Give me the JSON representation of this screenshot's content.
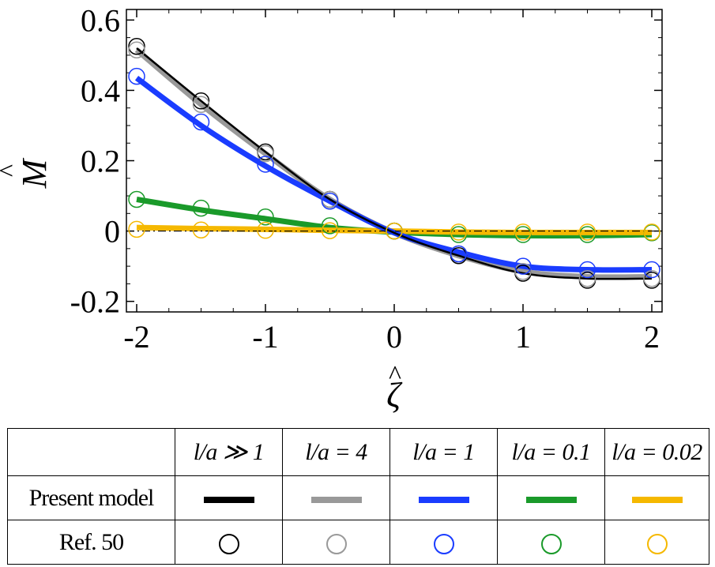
{
  "chart_data": {
    "type": "line",
    "title": "",
    "xlabel": "ζ",
    "ylabel": "M",
    "xlim": [
      -2,
      2
    ],
    "ylim": [
      -0.23,
      0.63
    ],
    "xticks": [
      -2,
      -1,
      0,
      1,
      2
    ],
    "xtick_labels": [
      "-2",
      "-1",
      "0",
      "1",
      "2"
    ],
    "yticks": [
      -0.2,
      0,
      0.2,
      0.4,
      0.6
    ],
    "ytick_labels": [
      "-0.2",
      "0",
      "0.2",
      "0.4",
      "0.6"
    ],
    "x": [
      -2,
      -1.5,
      -1,
      -0.5,
      0,
      0.5,
      1,
      1.5,
      2
    ],
    "series": [
      {
        "name": "l/a ≫ 1",
        "color": "#000000",
        "lineWidth": 2.5,
        "line": [
          0.52,
          0.37,
          0.225,
          0.09,
          -0.005,
          -0.07,
          -0.12,
          -0.135,
          -0.135
        ],
        "markers": [
          0.525,
          0.37,
          0.225,
          0.09,
          0.0,
          -0.07,
          -0.12,
          -0.14,
          -0.14
        ]
      },
      {
        "name": "l/a = 4",
        "color": "#999999",
        "lineWidth": 7,
        "line": [
          0.515,
          0.36,
          0.22,
          0.09,
          -0.005,
          -0.07,
          -0.115,
          -0.13,
          -0.13
        ],
        "markers": [
          0.515,
          0.36,
          0.22,
          0.09,
          0.0,
          -0.065,
          -0.115,
          -0.135,
          -0.135
        ]
      },
      {
        "name": "l/a = 1",
        "color": "#1a3cff",
        "lineWidth": 7,
        "line": [
          0.435,
          0.3,
          0.185,
          0.085,
          -0.005,
          -0.06,
          -0.1,
          -0.11,
          -0.11
        ],
        "markers": [
          0.44,
          0.31,
          0.19,
          0.085,
          0.0,
          -0.065,
          -0.1,
          -0.11,
          -0.11
        ]
      },
      {
        "name": "l/a = 0.1",
        "color": "#1a9a2a",
        "lineWidth": 7,
        "line": [
          0.09,
          0.06,
          0.035,
          0.01,
          -0.003,
          -0.01,
          -0.013,
          -0.013,
          -0.01
        ],
        "markers": [
          0.09,
          0.065,
          0.04,
          0.015,
          0.0,
          -0.01,
          -0.01,
          -0.01,
          -0.005
        ]
      },
      {
        "name": "l/a = 0.02",
        "color": "#f5b800",
        "lineWidth": 7,
        "line": [
          0.01,
          0.007,
          0.005,
          0.002,
          0.0,
          -0.003,
          -0.004,
          -0.004,
          -0.004
        ],
        "markers": [
          0.005,
          0.003,
          0.002,
          0.001,
          0.0,
          -0.003,
          -0.003,
          -0.003,
          -0.003
        ]
      }
    ],
    "reference_line": {
      "y": 0,
      "style": "dash-dot",
      "color": "#000000"
    },
    "legend": "table below chart"
  },
  "legend_table": {
    "col_headers": [
      "l/a ≫ 1",
      "l/a = 4",
      "l/a = 1",
      "l/a = 0.1",
      "l/a = 0.02"
    ],
    "row_present": "Present model",
    "row_ref": "Ref. 50",
    "colors": [
      "#000000",
      "#999999",
      "#1a3cff",
      "#1a9a2a",
      "#f5b800"
    ]
  }
}
